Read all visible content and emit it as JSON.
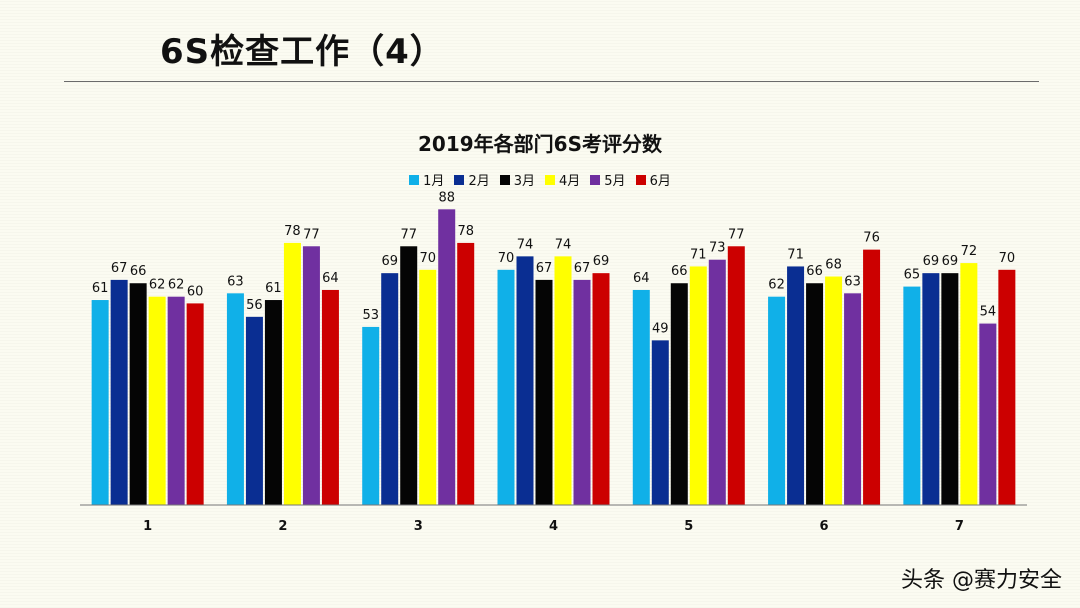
{
  "slide": {
    "title": "6S检查工作（4）",
    "watermark": "头条 @赛力安全"
  },
  "chart_data": {
    "type": "bar",
    "title": "2019年各部门6S考评分数",
    "categories": [
      "1",
      "2",
      "3",
      "4",
      "5",
      "6",
      "7"
    ],
    "series": [
      {
        "name": "1月",
        "color": "#10b0e8",
        "values": [
          61,
          63,
          53,
          70,
          64,
          62,
          65
        ]
      },
      {
        "name": "2月",
        "color": "#0a2e92",
        "values": [
          67,
          56,
          69,
          74,
          49,
          71,
          69
        ]
      },
      {
        "name": "3月",
        "color": "#050505",
        "values": [
          66,
          61,
          77,
          67,
          66,
          66,
          69
        ]
      },
      {
        "name": "4月",
        "color": "#ffff00",
        "values": [
          62,
          78,
          70,
          74,
          71,
          68,
          72
        ]
      },
      {
        "name": "5月",
        "color": "#7030a0",
        "values": [
          62,
          77,
          88,
          67,
          73,
          63,
          54
        ]
      },
      {
        "name": "6月",
        "color": "#cc0000",
        "values": [
          60,
          64,
          78,
          69,
          77,
          76,
          70
        ]
      }
    ],
    "ylim": [
      0,
      100
    ],
    "grid": false,
    "legend": "top-center",
    "data_labels": true
  }
}
